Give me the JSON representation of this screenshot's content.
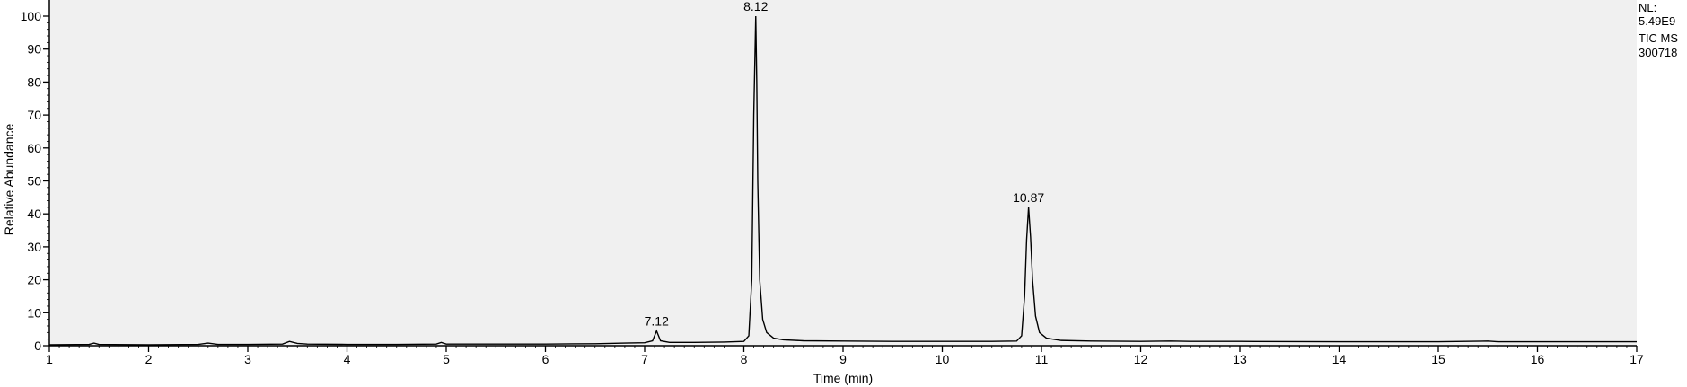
{
  "chart_data": {
    "type": "line",
    "xlabel": "Time (min)",
    "ylabel": "Relative Abundance",
    "xlim": [
      1,
      17
    ],
    "ylim": [
      0,
      100
    ],
    "x_ticks": [
      1,
      2,
      3,
      4,
      5,
      6,
      7,
      8,
      9,
      10,
      11,
      12,
      13,
      14,
      15,
      16,
      17
    ],
    "y_ticks": [
      0,
      10,
      20,
      30,
      40,
      50,
      60,
      70,
      80,
      90,
      100
    ],
    "grid": false,
    "plot_background": "#f0f0f0",
    "line_color": "#000000",
    "info": [
      "NL:",
      "5.49E9",
      "TIC  MS",
      "300718"
    ],
    "peaks": [
      {
        "label": "7.12",
        "x": 7.12,
        "y": 4.5
      },
      {
        "label": "8.12",
        "x": 8.12,
        "y": 100
      },
      {
        "label": "10.87",
        "x": 10.87,
        "y": 42
      }
    ],
    "series": [
      {
        "values": [
          [
            1.0,
            0.3
          ],
          [
            1.4,
            0.4
          ],
          [
            1.45,
            0.8
          ],
          [
            1.5,
            0.4
          ],
          [
            2.0,
            0.3
          ],
          [
            2.5,
            0.4
          ],
          [
            2.6,
            0.8
          ],
          [
            2.7,
            0.4
          ],
          [
            3.0,
            0.4
          ],
          [
            3.35,
            0.5
          ],
          [
            3.42,
            1.3
          ],
          [
            3.5,
            0.7
          ],
          [
            3.6,
            0.5
          ],
          [
            4.0,
            0.4
          ],
          [
            4.5,
            0.4
          ],
          [
            4.9,
            0.5
          ],
          [
            4.95,
            1.0
          ],
          [
            5.0,
            0.5
          ],
          [
            5.5,
            0.5
          ],
          [
            6.0,
            0.5
          ],
          [
            6.5,
            0.6
          ],
          [
            6.8,
            0.8
          ],
          [
            7.0,
            0.9
          ],
          [
            7.08,
            1.5
          ],
          [
            7.12,
            4.5
          ],
          [
            7.16,
            1.5
          ],
          [
            7.25,
            1.0
          ],
          [
            7.5,
            1.0
          ],
          [
            7.8,
            1.1
          ],
          [
            8.0,
            1.3
          ],
          [
            8.05,
            3.0
          ],
          [
            8.08,
            20.0
          ],
          [
            8.1,
            70.0
          ],
          [
            8.12,
            100
          ],
          [
            8.13,
            80.0
          ],
          [
            8.14,
            50.0
          ],
          [
            8.16,
            20.0
          ],
          [
            8.19,
            8.0
          ],
          [
            8.23,
            4.0
          ],
          [
            8.3,
            2.3
          ],
          [
            8.4,
            1.8
          ],
          [
            8.6,
            1.5
          ],
          [
            9.0,
            1.4
          ],
          [
            9.5,
            1.3
          ],
          [
            10.0,
            1.3
          ],
          [
            10.5,
            1.3
          ],
          [
            10.75,
            1.4
          ],
          [
            10.8,
            3.0
          ],
          [
            10.83,
            15.0
          ],
          [
            10.85,
            32.0
          ],
          [
            10.87,
            42.0
          ],
          [
            10.89,
            33.0
          ],
          [
            10.91,
            20.0
          ],
          [
            10.94,
            9.0
          ],
          [
            10.98,
            4.0
          ],
          [
            11.05,
            2.3
          ],
          [
            11.2,
            1.6
          ],
          [
            11.5,
            1.4
          ],
          [
            12.0,
            1.3
          ],
          [
            12.3,
            1.4
          ],
          [
            12.5,
            1.3
          ],
          [
            13.0,
            1.3
          ],
          [
            14.0,
            1.2
          ],
          [
            15.0,
            1.2
          ],
          [
            15.5,
            1.4
          ],
          [
            15.6,
            1.2
          ],
          [
            16.0,
            1.2
          ],
          [
            17.0,
            1.2
          ]
        ]
      }
    ]
  }
}
